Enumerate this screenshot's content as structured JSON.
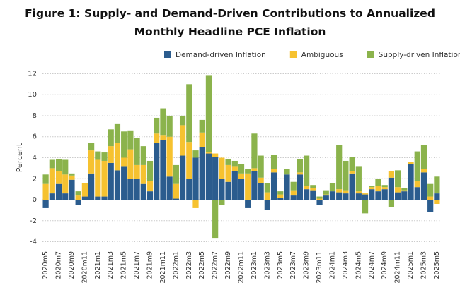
{
  "chart_data": {
    "type": "stacked_bar",
    "title": "Figure 1: Supply- and Demand-Driven Contributions to Annualized Monthly Headline PCE Inflation",
    "y_label": "Percent",
    "categories": [
      "2020m5",
      null,
      "2020m7",
      null,
      "2020m9",
      null,
      "2020m11",
      null,
      "2021m1",
      null,
      "2021m3",
      null,
      "2021m5",
      null,
      "2021m7",
      null,
      "2021m9",
      null,
      "2021m11",
      null,
      "2022m1",
      null,
      "2022m3",
      null,
      "2022m5",
      null,
      "2022m7",
      null,
      "2022m9",
      null,
      "2022m11",
      null,
      "2023m1",
      null,
      "2023m3",
      null,
      "2023m5",
      null,
      "2023m7",
      null,
      "2023m9",
      null,
      "2023m11",
      null,
      "2024m1",
      null,
      "2024m3",
      null,
      "2024m5",
      null,
      "2024m7",
      null,
      "2024m9",
      null,
      "2024m11",
      null,
      "2025m1",
      null,
      "2025m3",
      null,
      "2025m5"
    ],
    "series": [
      {
        "name": "Demand-driven Inflation",
        "color": "#2b5c8e",
        "values": [
          -0.8,
          0.6,
          1.5,
          0.6,
          1.9,
          -0.5,
          0.3,
          2.5,
          0.3,
          0.3,
          3.5,
          2.8,
          3.2,
          2.0,
          2.0,
          1.5,
          0.8,
          5.4,
          5.7,
          2.2,
          0.1,
          4.2,
          2.0,
          4.0,
          5.0,
          4.4,
          4.1,
          2.0,
          1.7,
          2.7,
          2.0,
          -0.8,
          2.7,
          1.6,
          -1.0,
          2.6,
          0.2,
          2.4,
          0.4,
          2.4,
          1.0,
          0.9,
          -0.5,
          0.4,
          0.8,
          0.7,
          0.6,
          2.5,
          0.6,
          0.5,
          1.0,
          0.8,
          1.0,
          2.1,
          0.7,
          0.8,
          3.4,
          1.2,
          2.6,
          -1.2,
          0.6
        ]
      },
      {
        "name": "Ambiguous",
        "color": "#f6c230",
        "values": [
          1.5,
          2.4,
          1.2,
          1.8,
          0.4,
          0.4,
          1.3,
          2.2,
          3.5,
          3.4,
          1.6,
          2.6,
          0.8,
          2.8,
          1.3,
          1.8,
          1.0,
          0.9,
          0.4,
          3.8,
          1.4,
          2.9,
          3.5,
          -0.8,
          1.4,
          0.1,
          0.3,
          2.0,
          1.6,
          0.5,
          0.5,
          2.5,
          0.3,
          0.5,
          0.7,
          0.3,
          0.3,
          0.0,
          0.5,
          0.2,
          0.3,
          0.2,
          0.1,
          0.1,
          0.0,
          0.3,
          0.3,
          0.2,
          0.2,
          0.1,
          0.2,
          0.5,
          0.2,
          0.6,
          0.5,
          0.1,
          0.2,
          0.6,
          0.3,
          0.3,
          -0.4
        ]
      },
      {
        "name": "Supply-driven Inflation",
        "color": "#8bb34c",
        "values": [
          0.9,
          0.8,
          1.2,
          1.4,
          0.2,
          0.4,
          0.0,
          0.7,
          0.8,
          0.8,
          1.6,
          1.8,
          2.5,
          1.8,
          2.6,
          1.8,
          1.9,
          1.5,
          2.6,
          2.0,
          1.8,
          0.9,
          5.5,
          0.7,
          1.2,
          7.3,
          -3.7,
          -0.5,
          0.6,
          0.5,
          0.9,
          0.4,
          3.3,
          2.1,
          0.9,
          1.4,
          0.3,
          0.5,
          0.8,
          1.3,
          2.9,
          0.3,
          0.2,
          0.4,
          0.8,
          4.2,
          2.8,
          1.4,
          2.4,
          -1.3,
          0.1,
          0.7,
          0.2,
          -0.7,
          1.6,
          0.2,
          0.0,
          2.8,
          2.3,
          1.2,
          1.6
        ]
      }
    ],
    "ylim": [
      -4.5,
      12.5
    ],
    "yticks": [
      -4,
      -2,
      0,
      2,
      4,
      6,
      8,
      10,
      12
    ],
    "grid": true
  }
}
